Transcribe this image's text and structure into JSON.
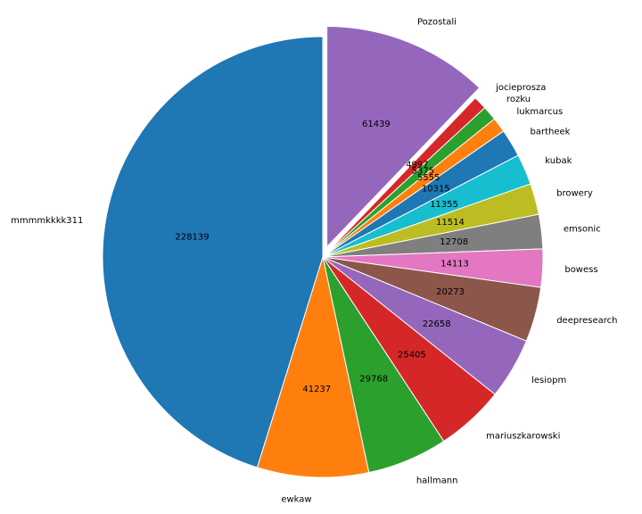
{
  "chart_data": {
    "type": "pie",
    "title": "",
    "slices": [
      {
        "label": "Pozostali",
        "value": 61439,
        "color": "#9467bd",
        "explode": 0.05
      },
      {
        "label": "jocieprosza",
        "value": 4997,
        "color": "#d62728"
      },
      {
        "label": "rozku",
        "value": 5375,
        "color": "#2ca02c"
      },
      {
        "label": "lukmarcus",
        "value": 5555,
        "color": "#ff7f0e"
      },
      {
        "label": "bartheek",
        "value": 10315,
        "color": "#1f77b4"
      },
      {
        "label": "kubak",
        "value": 11355,
        "color": "#17becf"
      },
      {
        "label": "browery",
        "value": 11514,
        "color": "#bcbd22"
      },
      {
        "label": "emsonic",
        "value": 12708,
        "color": "#7f7f7f"
      },
      {
        "label": "bowess",
        "value": 14113,
        "color": "#e377c2"
      },
      {
        "label": "deepresearch",
        "value": 20273,
        "color": "#8c564b"
      },
      {
        "label": "lesiopm",
        "value": 22658,
        "color": "#9467bd"
      },
      {
        "label": "mariuszkarowski",
        "value": 25405,
        "color": "#d62728"
      },
      {
        "label": "hallmann",
        "value": 29768,
        "color": "#2ca02c"
      },
      {
        "label": "ewkaw",
        "value": 41237,
        "color": "#ff7f0e"
      },
      {
        "label": "mmmmkkkk311",
        "value": 228139,
        "color": "#1f77b4"
      }
    ],
    "start_angle": "90 degrees (top)",
    "direction": "clockwise",
    "legend": "none"
  }
}
